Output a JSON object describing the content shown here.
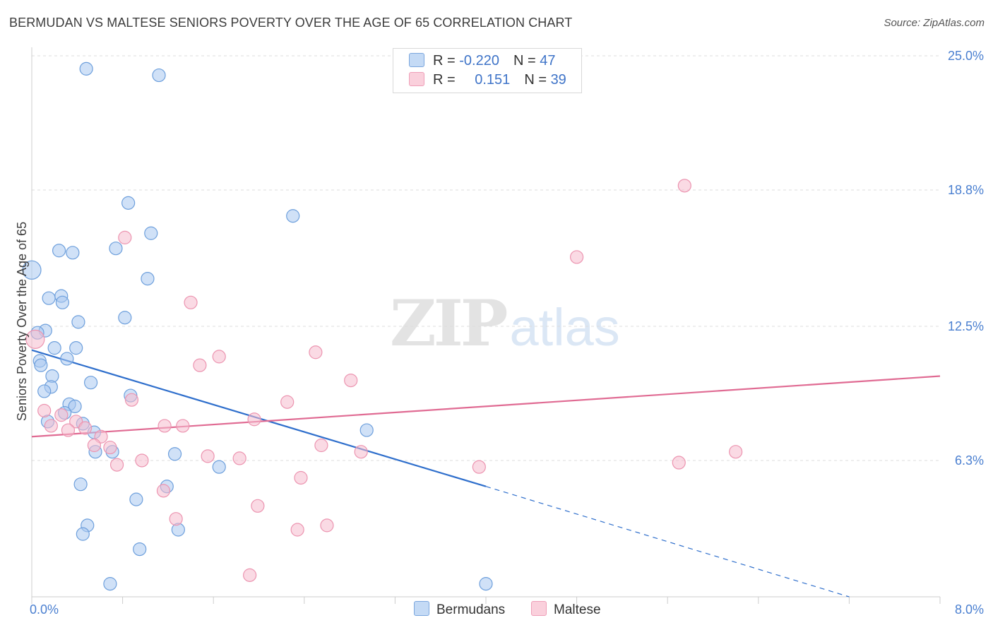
{
  "title": "BERMUDAN VS MALTESE SENIORS POVERTY OVER THE AGE OF 65 CORRELATION CHART",
  "source": "Source: ZipAtlas.com",
  "watermark": {
    "zip": "ZIP",
    "atlas": "atlas"
  },
  "legend": {
    "rows": [
      {
        "r_label": "R = ",
        "r_value": "-0.220",
        "n_label": "N = ",
        "n_value": "47",
        "color": "#a9c9f1"
      },
      {
        "r_label": "R = ",
        "r_value": "0.151",
        "n_label": "N = ",
        "n_value": "39",
        "color": "#f6bccd"
      }
    ]
  },
  "bottom_legend": [
    {
      "label": "Bermudans",
      "color": "#a9c9f1"
    },
    {
      "label": "Maltese",
      "color": "#f6bccd"
    }
  ],
  "chart_data": {
    "type": "scatter",
    "xlabel": "",
    "ylabel": "Seniors Poverty Over the Age of 65",
    "xlim": [
      0,
      8.0
    ],
    "ylim": [
      0,
      25.0
    ],
    "x_tick_labels": [
      {
        "value": 0,
        "label": "0.0%"
      },
      {
        "value": 8.0,
        "label": "8.0%"
      }
    ],
    "y_tick_labels": [
      {
        "value": 6.3,
        "label": "6.3%"
      },
      {
        "value": 12.5,
        "label": "12.5%"
      },
      {
        "value": 18.8,
        "label": "18.8%"
      },
      {
        "value": 25.0,
        "label": "25.0%"
      }
    ],
    "grid": true,
    "series": [
      {
        "name": "Bermudans",
        "color": "#a9c9f1",
        "stroke": "#6d9fdc",
        "trend_color": "#2f6fcc",
        "trend": {
          "x0": 0.0,
          "y0": 11.4,
          "x1": 4.0,
          "y1": 5.1,
          "dash_to_x": 7.2,
          "dash_to_y": 0.0
        },
        "points": [
          [
            0.48,
            24.4
          ],
          [
            1.12,
            24.1
          ],
          [
            0.85,
            18.2
          ],
          [
            2.3,
            17.6
          ],
          [
            1.05,
            16.8
          ],
          [
            0.24,
            16.0
          ],
          [
            0.36,
            15.9
          ],
          [
            0.74,
            16.1
          ],
          [
            0.0,
            15.1
          ],
          [
            1.02,
            14.7
          ],
          [
            0.15,
            13.8
          ],
          [
            0.26,
            13.9
          ],
          [
            0.27,
            13.6
          ],
          [
            0.82,
            12.9
          ],
          [
            0.41,
            12.7
          ],
          [
            0.12,
            12.3
          ],
          [
            0.05,
            12.2
          ],
          [
            0.2,
            11.5
          ],
          [
            0.39,
            11.5
          ],
          [
            0.31,
            11.0
          ],
          [
            0.07,
            10.9
          ],
          [
            0.08,
            10.7
          ],
          [
            0.18,
            10.2
          ],
          [
            0.52,
            9.9
          ],
          [
            0.17,
            9.7
          ],
          [
            0.11,
            9.5
          ],
          [
            0.87,
            9.3
          ],
          [
            0.33,
            8.9
          ],
          [
            0.38,
            8.8
          ],
          [
            0.29,
            8.5
          ],
          [
            0.14,
            8.1
          ],
          [
            0.45,
            8.0
          ],
          [
            0.55,
            7.6
          ],
          [
            2.95,
            7.7
          ],
          [
            0.56,
            6.7
          ],
          [
            0.71,
            6.7
          ],
          [
            1.26,
            6.6
          ],
          [
            1.65,
            6.0
          ],
          [
            0.43,
            5.2
          ],
          [
            1.19,
            5.1
          ],
          [
            0.92,
            4.5
          ],
          [
            0.49,
            3.3
          ],
          [
            0.45,
            2.9
          ],
          [
            1.29,
            3.1
          ],
          [
            0.95,
            2.2
          ],
          [
            0.69,
            0.6
          ],
          [
            4.0,
            0.6
          ]
        ]
      },
      {
        "name": "Maltese",
        "color": "#f6bccd",
        "stroke": "#ec94b0",
        "trend_color": "#e06b93",
        "trend": {
          "x0": 0.0,
          "y0": 7.4,
          "x1": 8.0,
          "y1": 10.2
        },
        "points": [
          [
            5.75,
            19.0
          ],
          [
            4.8,
            15.7
          ],
          [
            0.82,
            16.6
          ],
          [
            1.4,
            13.6
          ],
          [
            0.03,
            11.9
          ],
          [
            2.5,
            11.3
          ],
          [
            1.65,
            11.1
          ],
          [
            1.48,
            10.7
          ],
          [
            2.81,
            10.0
          ],
          [
            0.88,
            9.1
          ],
          [
            2.25,
            9.0
          ],
          [
            0.11,
            8.6
          ],
          [
            0.26,
            8.4
          ],
          [
            0.39,
            8.1
          ],
          [
            1.96,
            8.2
          ],
          [
            0.17,
            7.9
          ],
          [
            0.32,
            7.7
          ],
          [
            0.47,
            7.8
          ],
          [
            1.17,
            7.9
          ],
          [
            1.33,
            7.9
          ],
          [
            0.61,
            7.4
          ],
          [
            0.55,
            7.0
          ],
          [
            0.69,
            6.9
          ],
          [
            2.55,
            7.0
          ],
          [
            2.9,
            6.7
          ],
          [
            6.2,
            6.7
          ],
          [
            1.55,
            6.5
          ],
          [
            1.83,
            6.4
          ],
          [
            0.97,
            6.3
          ],
          [
            5.7,
            6.2
          ],
          [
            0.75,
            6.1
          ],
          [
            3.94,
            6.0
          ],
          [
            2.37,
            5.5
          ],
          [
            1.16,
            4.9
          ],
          [
            1.99,
            4.2
          ],
          [
            1.27,
            3.6
          ],
          [
            2.6,
            3.3
          ],
          [
            2.34,
            3.1
          ],
          [
            1.92,
            1.0
          ]
        ]
      }
    ]
  }
}
